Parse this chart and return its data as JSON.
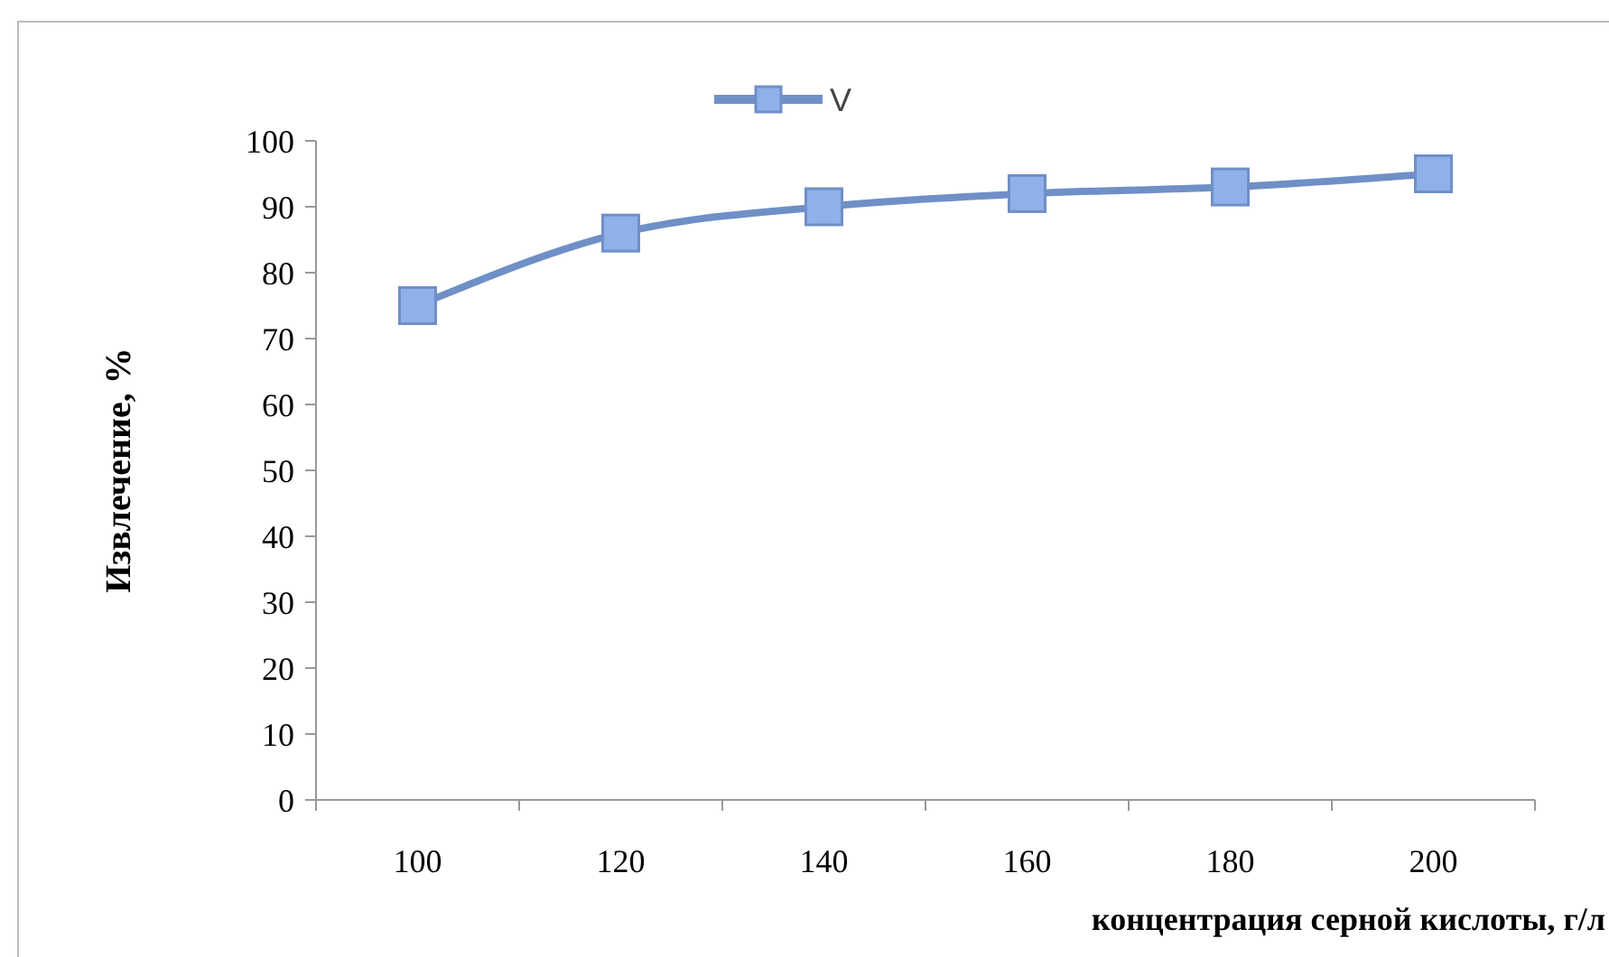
{
  "chart_data": {
    "type": "line",
    "xlabel": "концентрация серной кислоты, г/л",
    "ylabel": "Извлечение, %",
    "categories": [
      "100",
      "120",
      "140",
      "160",
      "180",
      "200"
    ],
    "series": [
      {
        "name": "V",
        "color": "#6f8fc7",
        "values": [
          75,
          86,
          90,
          92,
          93,
          95
        ]
      }
    ],
    "ylim": [
      0,
      100
    ],
    "yticks": [
      0,
      10,
      20,
      30,
      40,
      50,
      60,
      70,
      80,
      90,
      100
    ],
    "grid": false,
    "legend": "top",
    "marker": "square",
    "line_style": "solid"
  }
}
